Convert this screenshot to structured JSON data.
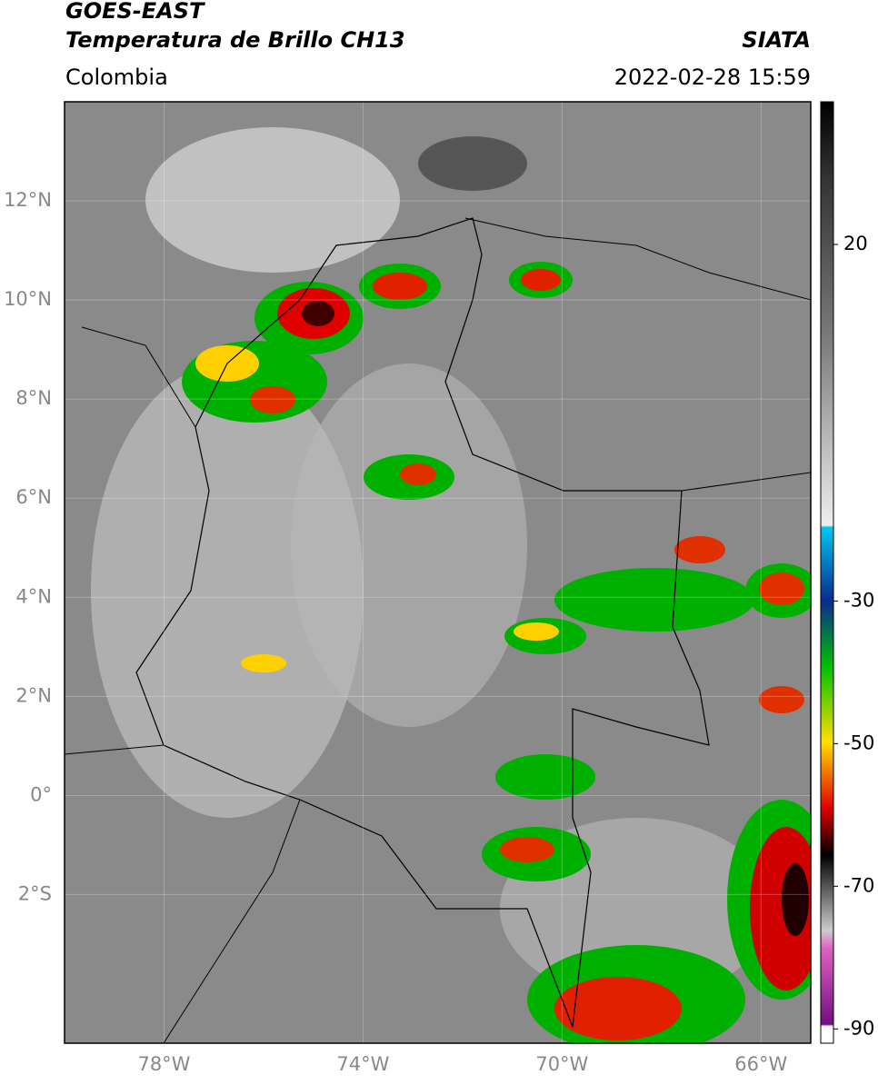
{
  "header": {
    "title": "GOES-EAST",
    "subtitle": "Temperatura de Brillo CH13",
    "region": "Colombia",
    "source": "SIATA",
    "datetime": "2022-02-28 15:59"
  },
  "map": {
    "lonlim": [
      -80,
      -65
    ],
    "latlim": [
      -5,
      14
    ],
    "lat_ticks": [
      {
        "value": 12,
        "label": "12°N"
      },
      {
        "value": 10,
        "label": "10°N"
      },
      {
        "value": 8,
        "label": "8°N"
      },
      {
        "value": 6,
        "label": "6°N"
      },
      {
        "value": 4,
        "label": "4°N"
      },
      {
        "value": 2,
        "label": "2°N"
      },
      {
        "value": 0,
        "label": "0°"
      },
      {
        "value": -2,
        "label": "2°S"
      }
    ],
    "lon_ticks": [
      {
        "value": -78,
        "label": "78°W"
      },
      {
        "value": -74,
        "label": "74°W"
      },
      {
        "value": -70,
        "label": "70°W"
      },
      {
        "value": -66,
        "label": "66°W"
      }
    ]
  },
  "colorbar": {
    "range": [
      -92,
      40
    ],
    "ticks": [
      20,
      -30,
      -50,
      -70,
      -90
    ]
  }
}
